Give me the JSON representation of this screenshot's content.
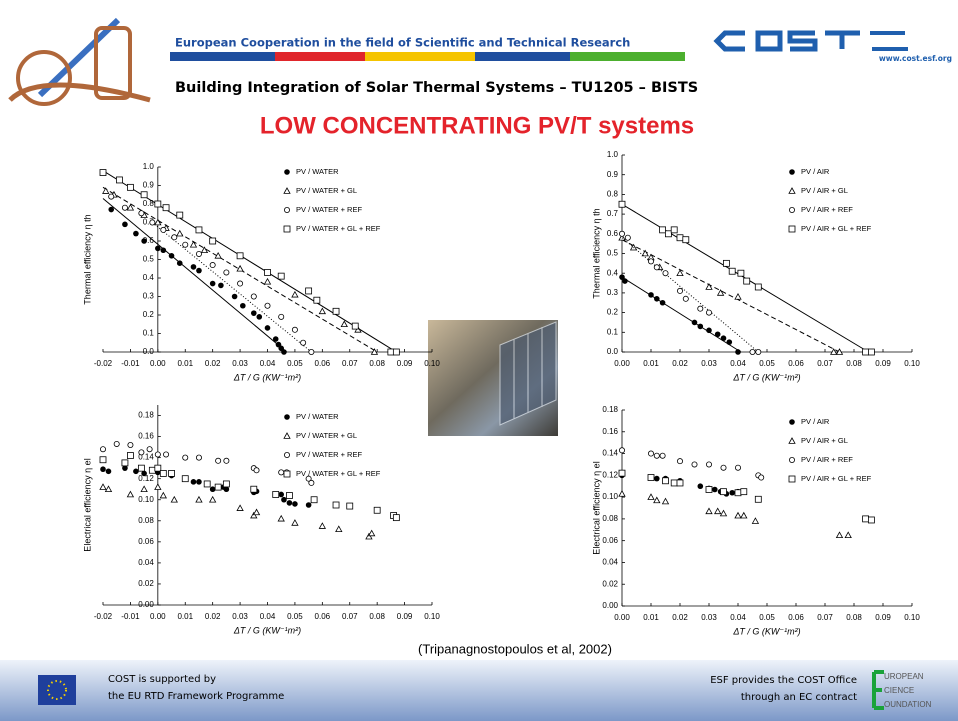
{
  "header": {
    "org": "European Cooperation in the field of Scientific and Technical Research",
    "url": "www.cost.esf.org",
    "title": "Building Integration of Solar Thermal Systems – TU1205 – BISTS",
    "subtitle": "LOW CONCENTRATING PV/T systems"
  },
  "caption": "(Tripanagnostopoulos et al, 2002)",
  "footer": {
    "left": [
      "COST is supported by",
      "the EU RTD Framework Programme"
    ],
    "right": [
      "ESF provides the COST Office",
      "through an EC contract"
    ],
    "esf_logo": [
      "UROPEAN",
      "CIENCE",
      "OUNDATION"
    ]
  },
  "chart_data": [
    {
      "type": "scatter",
      "xlabel": "ΔT / G  (KW⁻¹m²)",
      "ylabel": "Thermal efficiency η th",
      "xlim": [
        -0.02,
        0.1
      ],
      "ylim": [
        0,
        1.0
      ],
      "xticks": [
        {
          "value": -0.02,
          "label": "-0.02"
        },
        {
          "value": -0.01,
          "label": "-0.01"
        },
        {
          "value": 0,
          "label": "0.00"
        },
        0.01,
        0.02,
        0.03,
        0.04,
        0.05,
        0.06,
        0.07,
        0.08,
        0.09,
        {
          "value": 0.1,
          "label": "0.10"
        }
      ],
      "yticks": [
        {
          "value": 0,
          "label": "0.0"
        },
        0.1,
        0.2,
        0.3,
        0.4,
        0.5,
        0.6,
        0.7,
        0.8,
        0.9,
        {
          "value": 1.0,
          "label": "1.0"
        }
      ],
      "legend": "top-right",
      "series": [
        {
          "name": "PV / WATER",
          "marker": "filled-circle",
          "x": [
            -0.017,
            -0.012,
            -0.008,
            -0.005,
            0,
            0.002,
            0.005,
            0.008,
            0.013,
            0.015,
            0.02,
            0.023,
            0.028,
            0.031,
            0.035,
            0.037,
            0.04,
            0.043,
            0.044,
            0.045,
            0.046
          ],
          "values": [
            0.77,
            0.69,
            0.64,
            0.6,
            0.56,
            0.55,
            0.52,
            0.48,
            0.46,
            0.44,
            0.37,
            0.36,
            0.3,
            0.25,
            0.21,
            0.19,
            0.13,
            0.07,
            0.04,
            0.02,
            0.0
          ],
          "fit": {
            "x": [
              -0.02,
              0.047
            ],
            "y": [
              0.83,
              0.0
            ],
            "dash": "solid"
          }
        },
        {
          "name": "PV / WATER + GL",
          "marker": "triangle",
          "x": [
            -0.019,
            -0.016,
            -0.01,
            -0.005,
            0,
            0.003,
            0.008,
            0.013,
            0.017,
            0.022,
            0.03,
            0.04,
            0.05,
            0.06,
            0.068,
            0.073,
            0.079
          ],
          "values": [
            0.87,
            0.85,
            0.78,
            0.74,
            0.7,
            0.67,
            0.64,
            0.58,
            0.55,
            0.52,
            0.45,
            0.38,
            0.31,
            0.22,
            0.15,
            0.12,
            0.0
          ],
          "fit": {
            "x": [
              -0.02,
              0.08
            ],
            "y": [
              0.89,
              0.0
            ],
            "dash": "dashed"
          }
        },
        {
          "name": "PV / WATER + REF",
          "marker": "circle",
          "x": [
            -0.017,
            -0.012,
            -0.006,
            -0.002,
            0.002,
            0.006,
            0.01,
            0.015,
            0.02,
            0.025,
            0.03,
            0.035,
            0.04,
            0.045,
            0.05,
            0.053,
            0.056
          ],
          "values": [
            0.84,
            0.78,
            0.75,
            0.7,
            0.66,
            0.62,
            0.58,
            0.53,
            0.47,
            0.43,
            0.37,
            0.3,
            0.25,
            0.19,
            0.12,
            0.05,
            0.0
          ],
          "fit": {
            "x": [
              -0.002,
              0.056
            ],
            "y": [
              0.7,
              0.0
            ],
            "dash": "dotted"
          }
        },
        {
          "name": "PV / WATER + GL + REF",
          "marker": "square",
          "x": [
            -0.02,
            -0.014,
            -0.01,
            -0.005,
            0,
            0.003,
            0.008,
            0.015,
            0.02,
            0.03,
            0.04,
            0.045,
            0.055,
            0.058,
            0.065,
            0.072,
            0.085,
            0.087
          ],
          "values": [
            0.97,
            0.93,
            0.89,
            0.85,
            0.8,
            0.78,
            0.74,
            0.66,
            0.6,
            0.52,
            0.43,
            0.41,
            0.33,
            0.28,
            0.22,
            0.14,
            0.0,
            0.0
          ],
          "fit": {
            "x": [
              -0.02,
              0.087
            ],
            "y": [
              0.98,
              0.0
            ],
            "dash": "solid"
          }
        }
      ]
    },
    {
      "type": "scatter",
      "xlabel": "ΔT / G  (KW⁻¹m²)",
      "ylabel": "Thermal efficiency η th",
      "xlim": [
        0,
        0.1
      ],
      "ylim": [
        0,
        1.0
      ],
      "xticks": [
        {
          "value": 0,
          "label": "0.00"
        },
        0.01,
        0.02,
        0.03,
        0.04,
        0.05,
        0.06,
        0.07,
        0.08,
        0.09,
        {
          "value": 0.1,
          "label": "0.10"
        }
      ],
      "yticks": [
        {
          "value": 0,
          "label": "0.0"
        },
        0.1,
        0.2,
        0.3,
        0.4,
        0.5,
        0.6,
        0.7,
        0.8,
        0.9,
        {
          "value": 1.0,
          "label": "1.0"
        }
      ],
      "legend": "top-right",
      "series": [
        {
          "name": "PV / AIR",
          "marker": "filled-circle",
          "x": [
            0,
            0.001,
            0.01,
            0.012,
            0.014,
            0.025,
            0.027,
            0.03,
            0.033,
            0.035,
            0.037,
            0.04
          ],
          "values": [
            0.38,
            0.36,
            0.29,
            0.27,
            0.25,
            0.15,
            0.13,
            0.11,
            0.09,
            0.07,
            0.05,
            0.0
          ],
          "fit": {
            "x": [
              0,
              0.041
            ],
            "y": [
              0.38,
              0.0
            ],
            "dash": "solid"
          }
        },
        {
          "name": "PV / AIR + GL",
          "marker": "triangle",
          "x": [
            0,
            0.004,
            0.008,
            0.01,
            0.013,
            0.02,
            0.03,
            0.034,
            0.04,
            0.073,
            0.075
          ],
          "values": [
            0.58,
            0.53,
            0.5,
            0.48,
            0.43,
            0.4,
            0.33,
            0.3,
            0.28,
            0.0,
            0.0
          ],
          "fit": {
            "x": [
              0,
              0.075
            ],
            "y": [
              0.57,
              0.0
            ],
            "dash": "dashed"
          }
        },
        {
          "name": "PV / AIR + REF",
          "marker": "circle",
          "x": [
            0,
            0.002,
            0.01,
            0.012,
            0.015,
            0.02,
            0.022,
            0.027,
            0.03,
            0.045,
            0.047
          ],
          "values": [
            0.6,
            0.58,
            0.46,
            0.43,
            0.4,
            0.31,
            0.27,
            0.22,
            0.2,
            0.0,
            0.0
          ],
          "fit": {
            "x": [
              0,
              0.047
            ],
            "y": [
              0.58,
              0.0
            ],
            "dash": "dotted"
          }
        },
        {
          "name": "PV / AIR + GL + REF",
          "marker": "square",
          "x": [
            0,
            0.014,
            0.016,
            0.018,
            0.02,
            0.022,
            0.036,
            0.038,
            0.041,
            0.043,
            0.047,
            0.084,
            0.086
          ],
          "values": [
            0.75,
            0.62,
            0.6,
            0.62,
            0.58,
            0.57,
            0.45,
            0.41,
            0.4,
            0.36,
            0.33,
            0.0,
            0.0
          ],
          "fit": {
            "x": [
              0,
              0.085
            ],
            "y": [
              0.75,
              0.0
            ],
            "dash": "solid"
          }
        }
      ]
    },
    {
      "type": "scatter",
      "xlabel": "ΔT / G  (KW⁻¹m²)",
      "ylabel": "Electrical efficiency η el",
      "xlim": [
        -0.02,
        0.1
      ],
      "ylim": [
        0,
        0.19
      ],
      "xticks": [
        {
          "value": -0.02,
          "label": "-0.02"
        },
        {
          "value": -0.01,
          "label": "-0.01"
        },
        {
          "value": 0,
          "label": "0.00"
        },
        0.01,
        0.02,
        0.03,
        0.04,
        0.05,
        0.06,
        0.07,
        0.08,
        0.09,
        {
          "value": 0.1,
          "label": "0.10"
        }
      ],
      "yticks": [
        {
          "value": 0,
          "label": "0.00"
        },
        0.02,
        0.04,
        0.06,
        0.08,
        {
          "value": 0.1,
          "label": "0.10"
        },
        0.12,
        0.14,
        0.16,
        0.18
      ],
      "legend": "top-right",
      "series": [
        {
          "name": "PV / WATER",
          "marker": "filled-circle",
          "x": [
            -0.02,
            -0.018,
            -0.012,
            -0.008,
            -0.005,
            0,
            0.002,
            0.005,
            0.01,
            0.013,
            0.015,
            0.02,
            0.024,
            0.025,
            0.035,
            0.036,
            0.045,
            0.046,
            0.048,
            0.05,
            0.055
          ],
          "values": [
            0.129,
            0.127,
            0.13,
            0.127,
            0.125,
            0.126,
            0.125,
            0.123,
            0.12,
            0.117,
            0.117,
            0.11,
            0.112,
            0.11,
            0.107,
            0.108,
            0.105,
            0.1,
            0.097,
            0.096,
            0.095
          ]
        },
        {
          "name": "PV / WATER + GL",
          "marker": "triangle",
          "x": [
            -0.02,
            -0.018,
            -0.01,
            -0.005,
            0,
            0.002,
            0.006,
            0.015,
            0.02,
            0.03,
            0.035,
            0.036,
            0.045,
            0.05,
            0.06,
            0.066,
            0.077,
            0.078
          ],
          "values": [
            0.112,
            0.11,
            0.105,
            0.11,
            0.112,
            0.104,
            0.1,
            0.1,
            0.1,
            0.092,
            0.085,
            0.088,
            0.082,
            0.078,
            0.075,
            0.072,
            0.065,
            0.068
          ]
        },
        {
          "name": "PV / WATER + REF",
          "marker": "circle",
          "x": [
            -0.02,
            -0.015,
            -0.01,
            -0.006,
            -0.003,
            0,
            0.003,
            0.01,
            0.015,
            0.022,
            0.025,
            0.035,
            0.036,
            0.045,
            0.047,
            0.055,
            0.056
          ],
          "values": [
            0.148,
            0.153,
            0.152,
            0.145,
            0.148,
            0.143,
            0.143,
            0.14,
            0.14,
            0.137,
            0.137,
            0.13,
            0.128,
            0.126,
            0.126,
            0.12,
            0.116
          ]
        },
        {
          "name": "PV / WATER + GL + REF",
          "marker": "square",
          "x": [
            -0.02,
            -0.012,
            -0.01,
            -0.006,
            -0.002,
            0,
            0.002,
            0.005,
            0.01,
            0.018,
            0.022,
            0.025,
            0.035,
            0.043,
            0.048,
            0.057,
            0.065,
            0.07,
            0.08,
            0.086,
            0.087
          ],
          "values": [
            0.138,
            0.135,
            0.142,
            0.13,
            0.128,
            0.13,
            0.125,
            0.125,
            0.12,
            0.115,
            0.112,
            0.115,
            0.11,
            0.105,
            0.104,
            0.1,
            0.095,
            0.094,
            0.09,
            0.085,
            0.083
          ]
        }
      ]
    },
    {
      "type": "scatter",
      "xlabel": "ΔT / G  (KW⁻¹m²)",
      "ylabel": "Electrical efficiency η el",
      "xlim": [
        0,
        0.1
      ],
      "ylim": [
        0,
        0.18
      ],
      "xticks": [
        {
          "value": 0,
          "label": "0.00"
        },
        0.01,
        0.02,
        0.03,
        0.04,
        0.05,
        0.06,
        0.07,
        0.08,
        0.09,
        {
          "value": 0.1,
          "label": "0.10"
        }
      ],
      "yticks": [
        {
          "value": 0,
          "label": "0.00"
        },
        0.02,
        0.04,
        0.06,
        0.08,
        {
          "value": 0.1,
          "label": "0.10"
        },
        0.12,
        0.14,
        0.16,
        0.18
      ],
      "legend": "top-right",
      "series": [
        {
          "name": "PV / AIR",
          "marker": "filled-circle",
          "x": [
            0,
            0.01,
            0.012,
            0.015,
            0.02,
            0.027,
            0.03,
            0.032,
            0.034,
            0.036,
            0.038,
            0.04,
            0.042
          ],
          "values": [
            0.12,
            0.118,
            0.117,
            0.117,
            0.115,
            0.11,
            0.108,
            0.107,
            0.105,
            0.103,
            0.104,
            0.105,
            0.105
          ]
        },
        {
          "name": "PV / AIR + GL",
          "marker": "triangle",
          "x": [
            0,
            0.01,
            0.012,
            0.015,
            0.03,
            0.033,
            0.035,
            0.04,
            0.042,
            0.046,
            0.075,
            0.078
          ],
          "values": [
            0.103,
            0.1,
            0.097,
            0.096,
            0.087,
            0.087,
            0.085,
            0.083,
            0.083,
            0.078,
            0.065,
            0.065
          ]
        },
        {
          "name": "PV / AIR + REF",
          "marker": "circle",
          "x": [
            0,
            0.01,
            0.012,
            0.014,
            0.02,
            0.025,
            0.03,
            0.035,
            0.04,
            0.047,
            0.048
          ],
          "values": [
            0.143,
            0.14,
            0.138,
            0.138,
            0.133,
            0.13,
            0.13,
            0.127,
            0.127,
            0.12,
            0.118
          ]
        },
        {
          "name": "PV / AIR + GL + REF",
          "marker": "square",
          "x": [
            0,
            0.01,
            0.015,
            0.018,
            0.02,
            0.03,
            0.035,
            0.04,
            0.042,
            0.047,
            0.084,
            0.086
          ],
          "values": [
            0.122,
            0.118,
            0.115,
            0.113,
            0.113,
            0.107,
            0.105,
            0.104,
            0.105,
            0.098,
            0.08,
            0.079
          ]
        }
      ]
    }
  ]
}
